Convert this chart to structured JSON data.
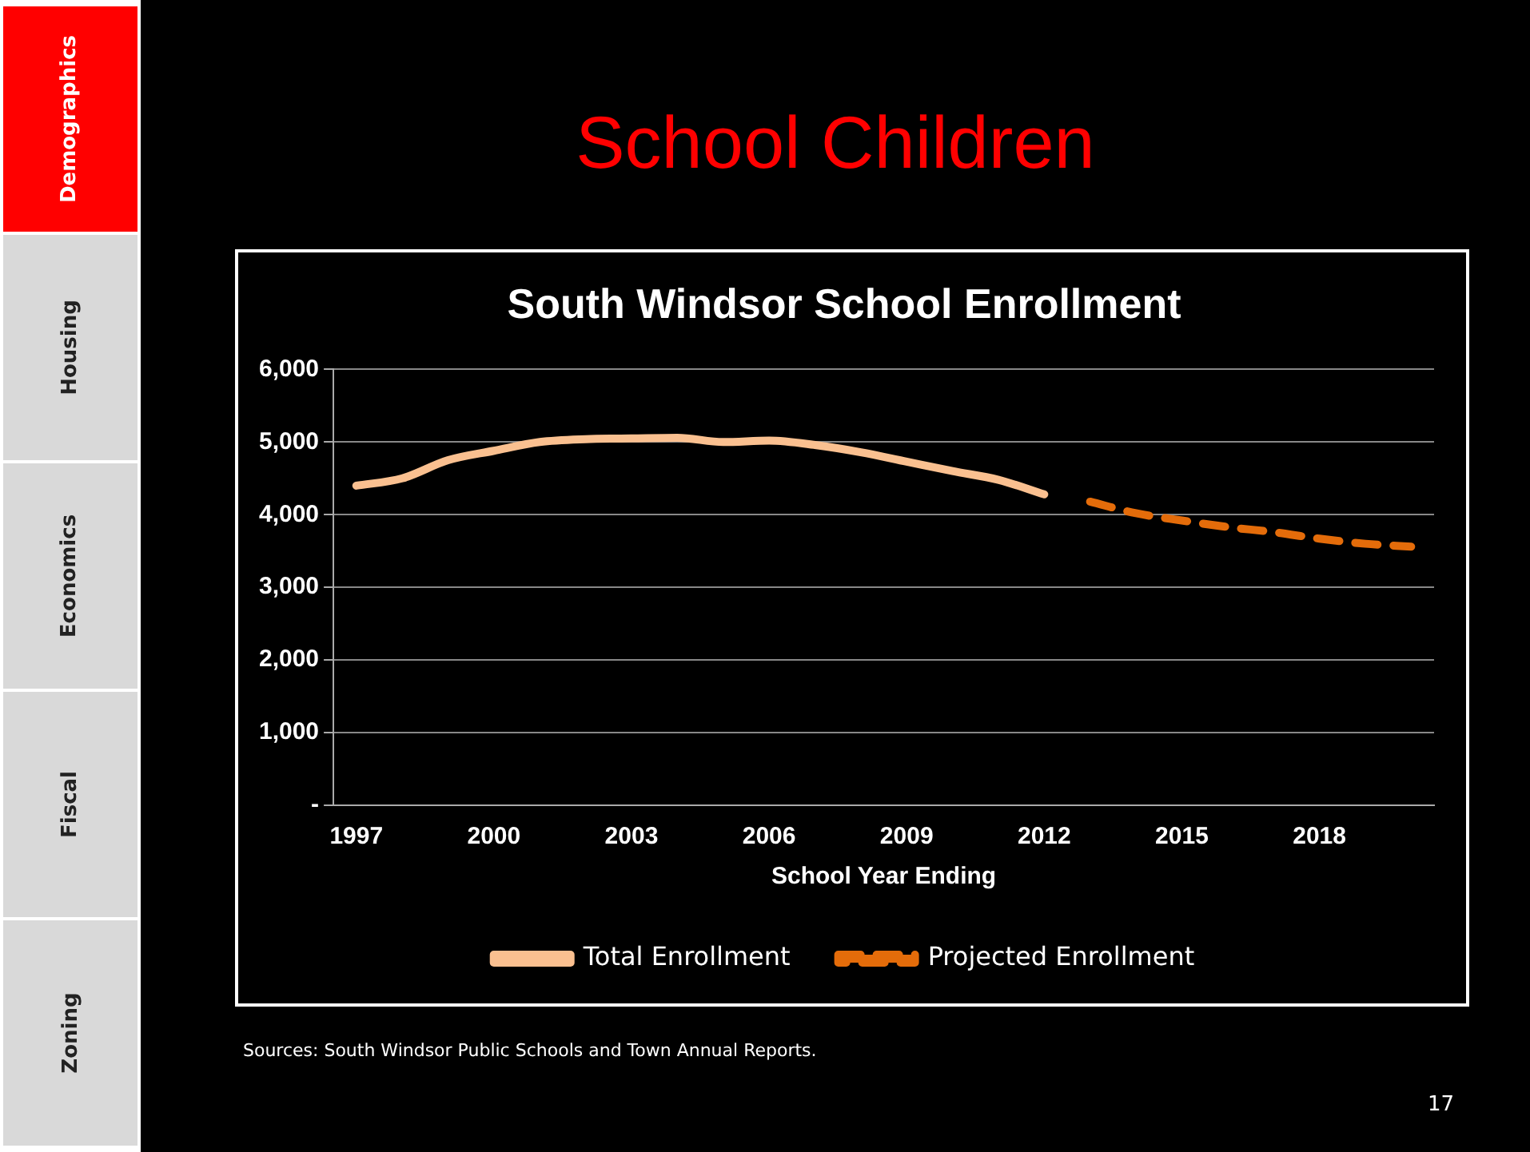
{
  "chart_data": {
    "type": "line",
    "title": "School Children",
    "subtitle": "South Windsor School Enrollment",
    "xlabel": "School Year Ending",
    "categories": [
      "1997",
      null,
      null,
      "2000",
      null,
      null,
      "2003",
      null,
      null,
      "2006",
      null,
      null,
      "2009",
      null,
      null,
      "2012",
      null,
      null,
      "2015",
      null,
      null,
      "2018",
      null,
      null
    ],
    "series": [
      {
        "name": "Total Enrollment",
        "color": "#fac090",
        "line_style": "solid",
        "values": [
          4400,
          4500,
          4750,
          4880,
          5000,
          5040,
          5050,
          5060,
          5000,
          5020,
          4960,
          4860,
          4730,
          4600,
          4480,
          4280,
          null,
          null,
          null,
          null,
          null,
          null,
          null,
          null
        ]
      },
      {
        "name": "Projected Enrollment",
        "color": "#e46c0a",
        "line_style": "dashed",
        "values": [
          null,
          null,
          null,
          null,
          null,
          null,
          null,
          null,
          null,
          null,
          null,
          null,
          null,
          null,
          null,
          null,
          4180,
          4020,
          3920,
          3830,
          3760,
          3670,
          3600,
          3560
        ]
      }
    ],
    "ylim": [
      0,
      6000
    ],
    "yticks": [
      {
        "value": 0,
        "label": "-"
      },
      {
        "value": 1000,
        "label": "1,000"
      },
      {
        "value": 2000,
        "label": "2,000"
      },
      {
        "value": 3000,
        "label": "3,000"
      },
      {
        "value": 4000,
        "label": "4,000"
      },
      {
        "value": 5000,
        "label": "5,000"
      },
      {
        "value": 6000,
        "label": "6,000"
      }
    ],
    "grid": "y",
    "legend": "bottom",
    "marker": "none",
    "annotations": [
      "Demographics",
      "Housing",
      "Economics",
      "Fiscal",
      "Zoning",
      "Sources:  South Windsor Public Schools and Town Annual Reports.",
      "17"
    ]
  }
}
